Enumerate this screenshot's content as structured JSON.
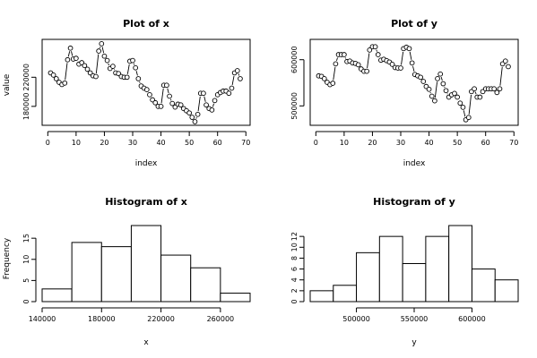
{
  "chart_data": [
    {
      "type": "scatter",
      "title": "Plot of x",
      "xlabel": "index",
      "ylabel": "value",
      "x_ticks": [
        0,
        10,
        20,
        30,
        40,
        50,
        60,
        70
      ],
      "y_ticks": [
        180000,
        220000
      ],
      "y_tick_labels": [
        "180000",
        "220000"
      ],
      "x_range": [
        -2,
        71.5
      ],
      "y_range": [
        154000,
        272000
      ],
      "connect_pattern": "lines-with-gaps",
      "x": [
        1,
        2,
        3,
        4,
        5,
        6,
        7,
        8,
        9,
        10,
        11,
        12,
        13,
        14,
        15,
        16,
        17,
        18,
        19,
        20,
        21,
        22,
        23,
        24,
        25,
        26,
        27,
        28,
        29,
        30,
        31,
        32,
        33,
        34,
        35,
        36,
        37,
        38,
        39,
        40,
        41,
        42,
        43,
        44,
        45,
        46,
        47,
        48,
        49,
        50,
        51,
        52,
        53,
        54,
        55,
        56,
        57,
        58,
        59,
        60,
        61,
        62,
        63,
        64,
        65,
        66,
        67,
        68,
        69
      ],
      "y": [
        226000,
        223000,
        218000,
        213000,
        210000,
        212000,
        244000,
        260000,
        245000,
        246000,
        238000,
        240000,
        236000,
        231000,
        226000,
        222000,
        221000,
        256000,
        266000,
        249000,
        243000,
        232000,
        235000,
        226000,
        225000,
        221000,
        220000,
        220000,
        242000,
        243000,
        233000,
        218000,
        208000,
        205000,
        203000,
        196000,
        189000,
        185000,
        180000,
        180000,
        209000,
        209000,
        194000,
        184000,
        179000,
        183000,
        182000,
        177000,
        174000,
        171000,
        165000,
        159000,
        169000,
        198000,
        198000,
        182000,
        177000,
        175000,
        188000,
        196000,
        199000,
        201000,
        201000,
        198000,
        205000,
        226000,
        229000,
        218000,
        null
      ]
    },
    {
      "type": "scatter",
      "title": "Plot of y",
      "xlabel": "index",
      "ylabel": "",
      "x_ticks": [
        0,
        10,
        20,
        30,
        40,
        50,
        60,
        70
      ],
      "y_ticks": [
        500000,
        600000
      ],
      "y_tick_labels": [
        "500000",
        "600000"
      ],
      "x_range": [
        -2,
        71.5
      ],
      "y_range": [
        458000,
        644000
      ],
      "connect_pattern": "lines-with-gaps",
      "x": [
        1,
        2,
        3,
        4,
        5,
        6,
        7,
        8,
        9,
        10,
        11,
        12,
        13,
        14,
        15,
        16,
        17,
        18,
        19,
        20,
        21,
        22,
        23,
        24,
        25,
        26,
        27,
        28,
        29,
        30,
        31,
        32,
        33,
        34,
        35,
        36,
        37,
        38,
        39,
        40,
        41,
        42,
        43,
        44,
        45,
        46,
        47,
        48,
        49,
        50,
        51,
        52,
        53,
        54,
        55,
        56,
        57,
        58,
        59,
        60,
        61,
        62,
        63,
        64,
        65,
        66,
        67,
        68,
        69
      ],
      "y": [
        565000,
        564000,
        559000,
        551000,
        546000,
        549000,
        591000,
        611000,
        611000,
        611000,
        596000,
        597000,
        593000,
        592000,
        589000,
        580000,
        575000,
        575000,
        621000,
        628000,
        628000,
        611000,
        599000,
        601000,
        598000,
        595000,
        590000,
        583000,
        582000,
        582000,
        624000,
        627000,
        624000,
        593000,
        568000,
        565000,
        562000,
        553000,
        542000,
        536000,
        521000,
        511000,
        559000,
        569000,
        548000,
        533000,
        519000,
        524000,
        527000,
        519000,
        506000,
        497000,
        470000,
        475000,
        531000,
        537000,
        519000,
        519000,
        531000,
        537000,
        537000,
        537000,
        537000,
        529000,
        537000,
        591000,
        597000,
        585000,
        null
      ]
    },
    {
      "type": "bar",
      "title": "Histogram of x",
      "xlabel": "x",
      "ylabel": "Frequency",
      "bin_edges": [
        140000,
        160000,
        180000,
        200000,
        220000,
        240000,
        260000,
        280000
      ],
      "counts": [
        3,
        14,
        13,
        18,
        11,
        8,
        2
      ],
      "x_ticks": [
        140000,
        180000,
        220000,
        260000
      ],
      "x_tick_labels": [
        "140000",
        "180000",
        "220000",
        "260000"
      ],
      "y_ticks": [
        0,
        5,
        10,
        15
      ],
      "y_range": [
        0,
        18
      ]
    },
    {
      "type": "bar",
      "title": "Histogram of y",
      "xlabel": "y",
      "ylabel": "",
      "bin_edges": [
        460000,
        480000,
        500000,
        520000,
        540000,
        560000,
        580000,
        600000,
        620000,
        640000
      ],
      "counts": [
        2,
        3,
        9,
        12,
        7,
        12,
        14,
        6,
        4
      ],
      "x_ticks": [
        500000,
        550000,
        600000
      ],
      "x_tick_labels": [
        "500000",
        "550000",
        "600000"
      ],
      "y_ticks": [
        0,
        2,
        4,
        6,
        8,
        10,
        12
      ],
      "y_range": [
        0,
        14
      ]
    }
  ]
}
